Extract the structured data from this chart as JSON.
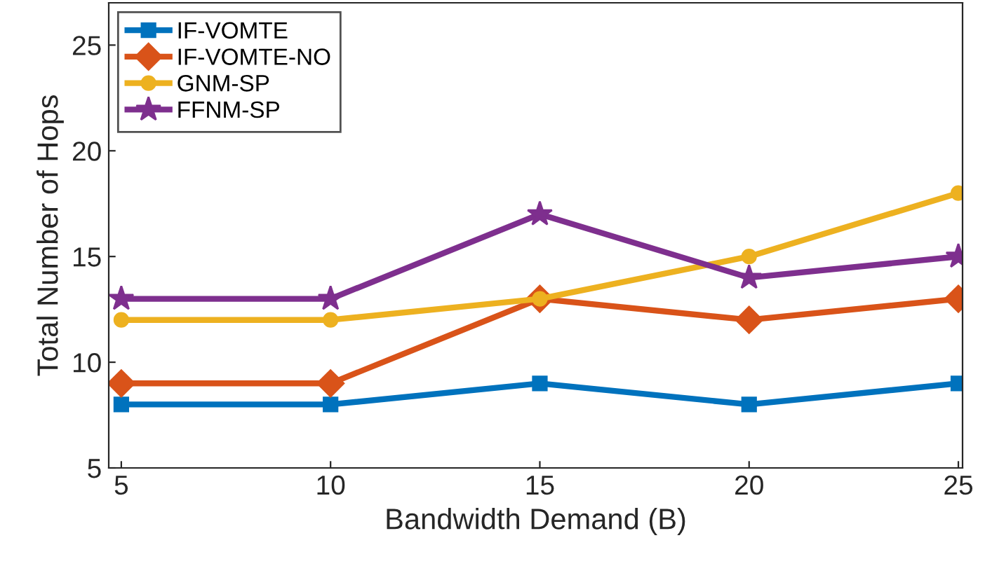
{
  "chart_data": {
    "type": "line",
    "xlabel": "Bandwidth Demand (B)",
    "ylabel": "Total Number of Hops",
    "x": [
      5,
      10,
      15,
      20,
      25
    ],
    "xlim": [
      4.7,
      25.1
    ],
    "xticks": [
      5,
      10,
      15,
      20,
      25
    ],
    "ylim": [
      5,
      27
    ],
    "yticks": [
      5,
      10,
      15,
      20,
      25
    ],
    "grid": false,
    "legend": "top left",
    "line_style": "solid",
    "series": [
      {
        "name": "IF-VOMTE",
        "color": "#0072bd",
        "marker": "square",
        "values": [
          8,
          8,
          9,
          8,
          9
        ]
      },
      {
        "name": "IF-VOMTE-NO",
        "color": "#d95319",
        "marker": "diamond",
        "values": [
          9,
          9,
          13,
          12,
          13
        ]
      },
      {
        "name": "GNM-SP",
        "color": "#edb120",
        "marker": "circle",
        "values": [
          12,
          12,
          13,
          15,
          18
        ]
      },
      {
        "name": "FFNM-SP",
        "color": "#7e2f8e",
        "marker": "star",
        "values": [
          13,
          13,
          17,
          14,
          15
        ]
      }
    ]
  }
}
